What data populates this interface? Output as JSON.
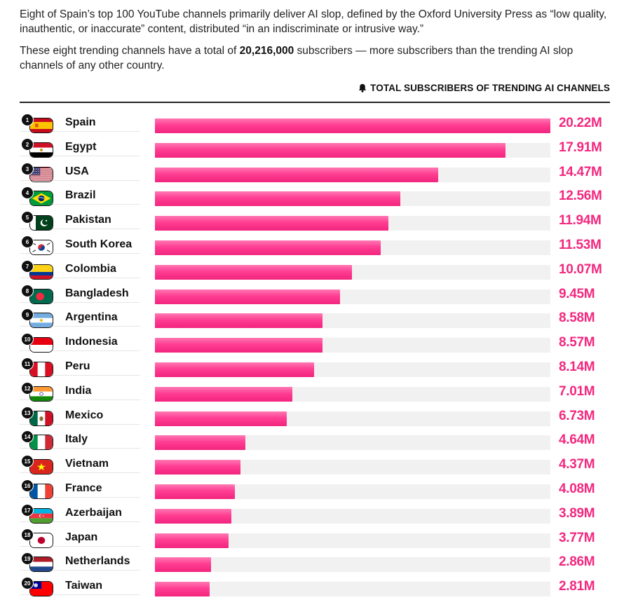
{
  "intro": {
    "line1": "Eight of Spain’s top 100 YouTube channels primarily deliver AI slop, defined by the Oxford University Press as “low quality, inauthentic, or inaccurate” content, distributed “in an indiscriminate or intrusive way.”",
    "line2_before": "These eight trending channels have a total of ",
    "line2_bold": "20,216,000",
    "line2_after": " subscribers — more subscribers than the trending AI slop channels of any other country."
  },
  "header": {
    "title": "TOTAL SUBSCRIBERS OF TRENDING AI CHANNELS",
    "icon": "bell-icon"
  },
  "colors": {
    "bar": "#f2287f",
    "track": "#f1f1f1",
    "value": "#f2287f"
  },
  "chart_data": {
    "type": "bar",
    "orientation": "horizontal",
    "title": "TOTAL SUBSCRIBERS OF TRENDING AI CHANNELS",
    "unit": "M",
    "xlim": [
      0,
      20.22
    ],
    "categories": [
      "Spain",
      "Egypt",
      "USA",
      "Brazil",
      "Pakistan",
      "South Korea",
      "Colombia",
      "Bangladesh",
      "Argentina",
      "Indonesia",
      "Peru",
      "India",
      "Mexico",
      "Italy",
      "Vietnam",
      "France",
      "Azerbaijan",
      "Japan",
      "Netherlands",
      "Taiwan"
    ],
    "ranks": [
      "1",
      "2",
      "3",
      "4",
      "5",
      "6",
      "7",
      "8",
      "9",
      "10",
      "11",
      "12",
      "13",
      "14",
      "15",
      "16",
      "17",
      "18",
      "19",
      "20"
    ],
    "values": [
      20.22,
      17.91,
      14.47,
      12.56,
      11.94,
      11.53,
      10.07,
      9.45,
      8.58,
      8.57,
      8.14,
      7.01,
      6.73,
      4.64,
      4.37,
      4.08,
      3.89,
      3.77,
      2.86,
      2.81
    ],
    "labels": [
      "20.22M",
      "17.91M",
      "14.47M",
      "12.56M",
      "11.94M",
      "11.53M",
      "10.07M",
      "9.45M",
      "8.58M",
      "8.57M",
      "8.14M",
      "7.01M",
      "6.73M",
      "4.64M",
      "4.37M",
      "4.08M",
      "3.89M",
      "3.77M",
      "2.86M",
      "2.81M"
    ],
    "flags": [
      "spain-flag-icon",
      "egypt-flag-icon",
      "usa-flag-icon",
      "brazil-flag-icon",
      "pakistan-flag-icon",
      "south-korea-flag-icon",
      "colombia-flag-icon",
      "bangladesh-flag-icon",
      "argentina-flag-icon",
      "indonesia-flag-icon",
      "peru-flag-icon",
      "india-flag-icon",
      "mexico-flag-icon",
      "italy-flag-icon",
      "vietnam-flag-icon",
      "france-flag-icon",
      "azerbaijan-flag-icon",
      "japan-flag-icon",
      "netherlands-flag-icon",
      "taiwan-flag-icon"
    ]
  }
}
